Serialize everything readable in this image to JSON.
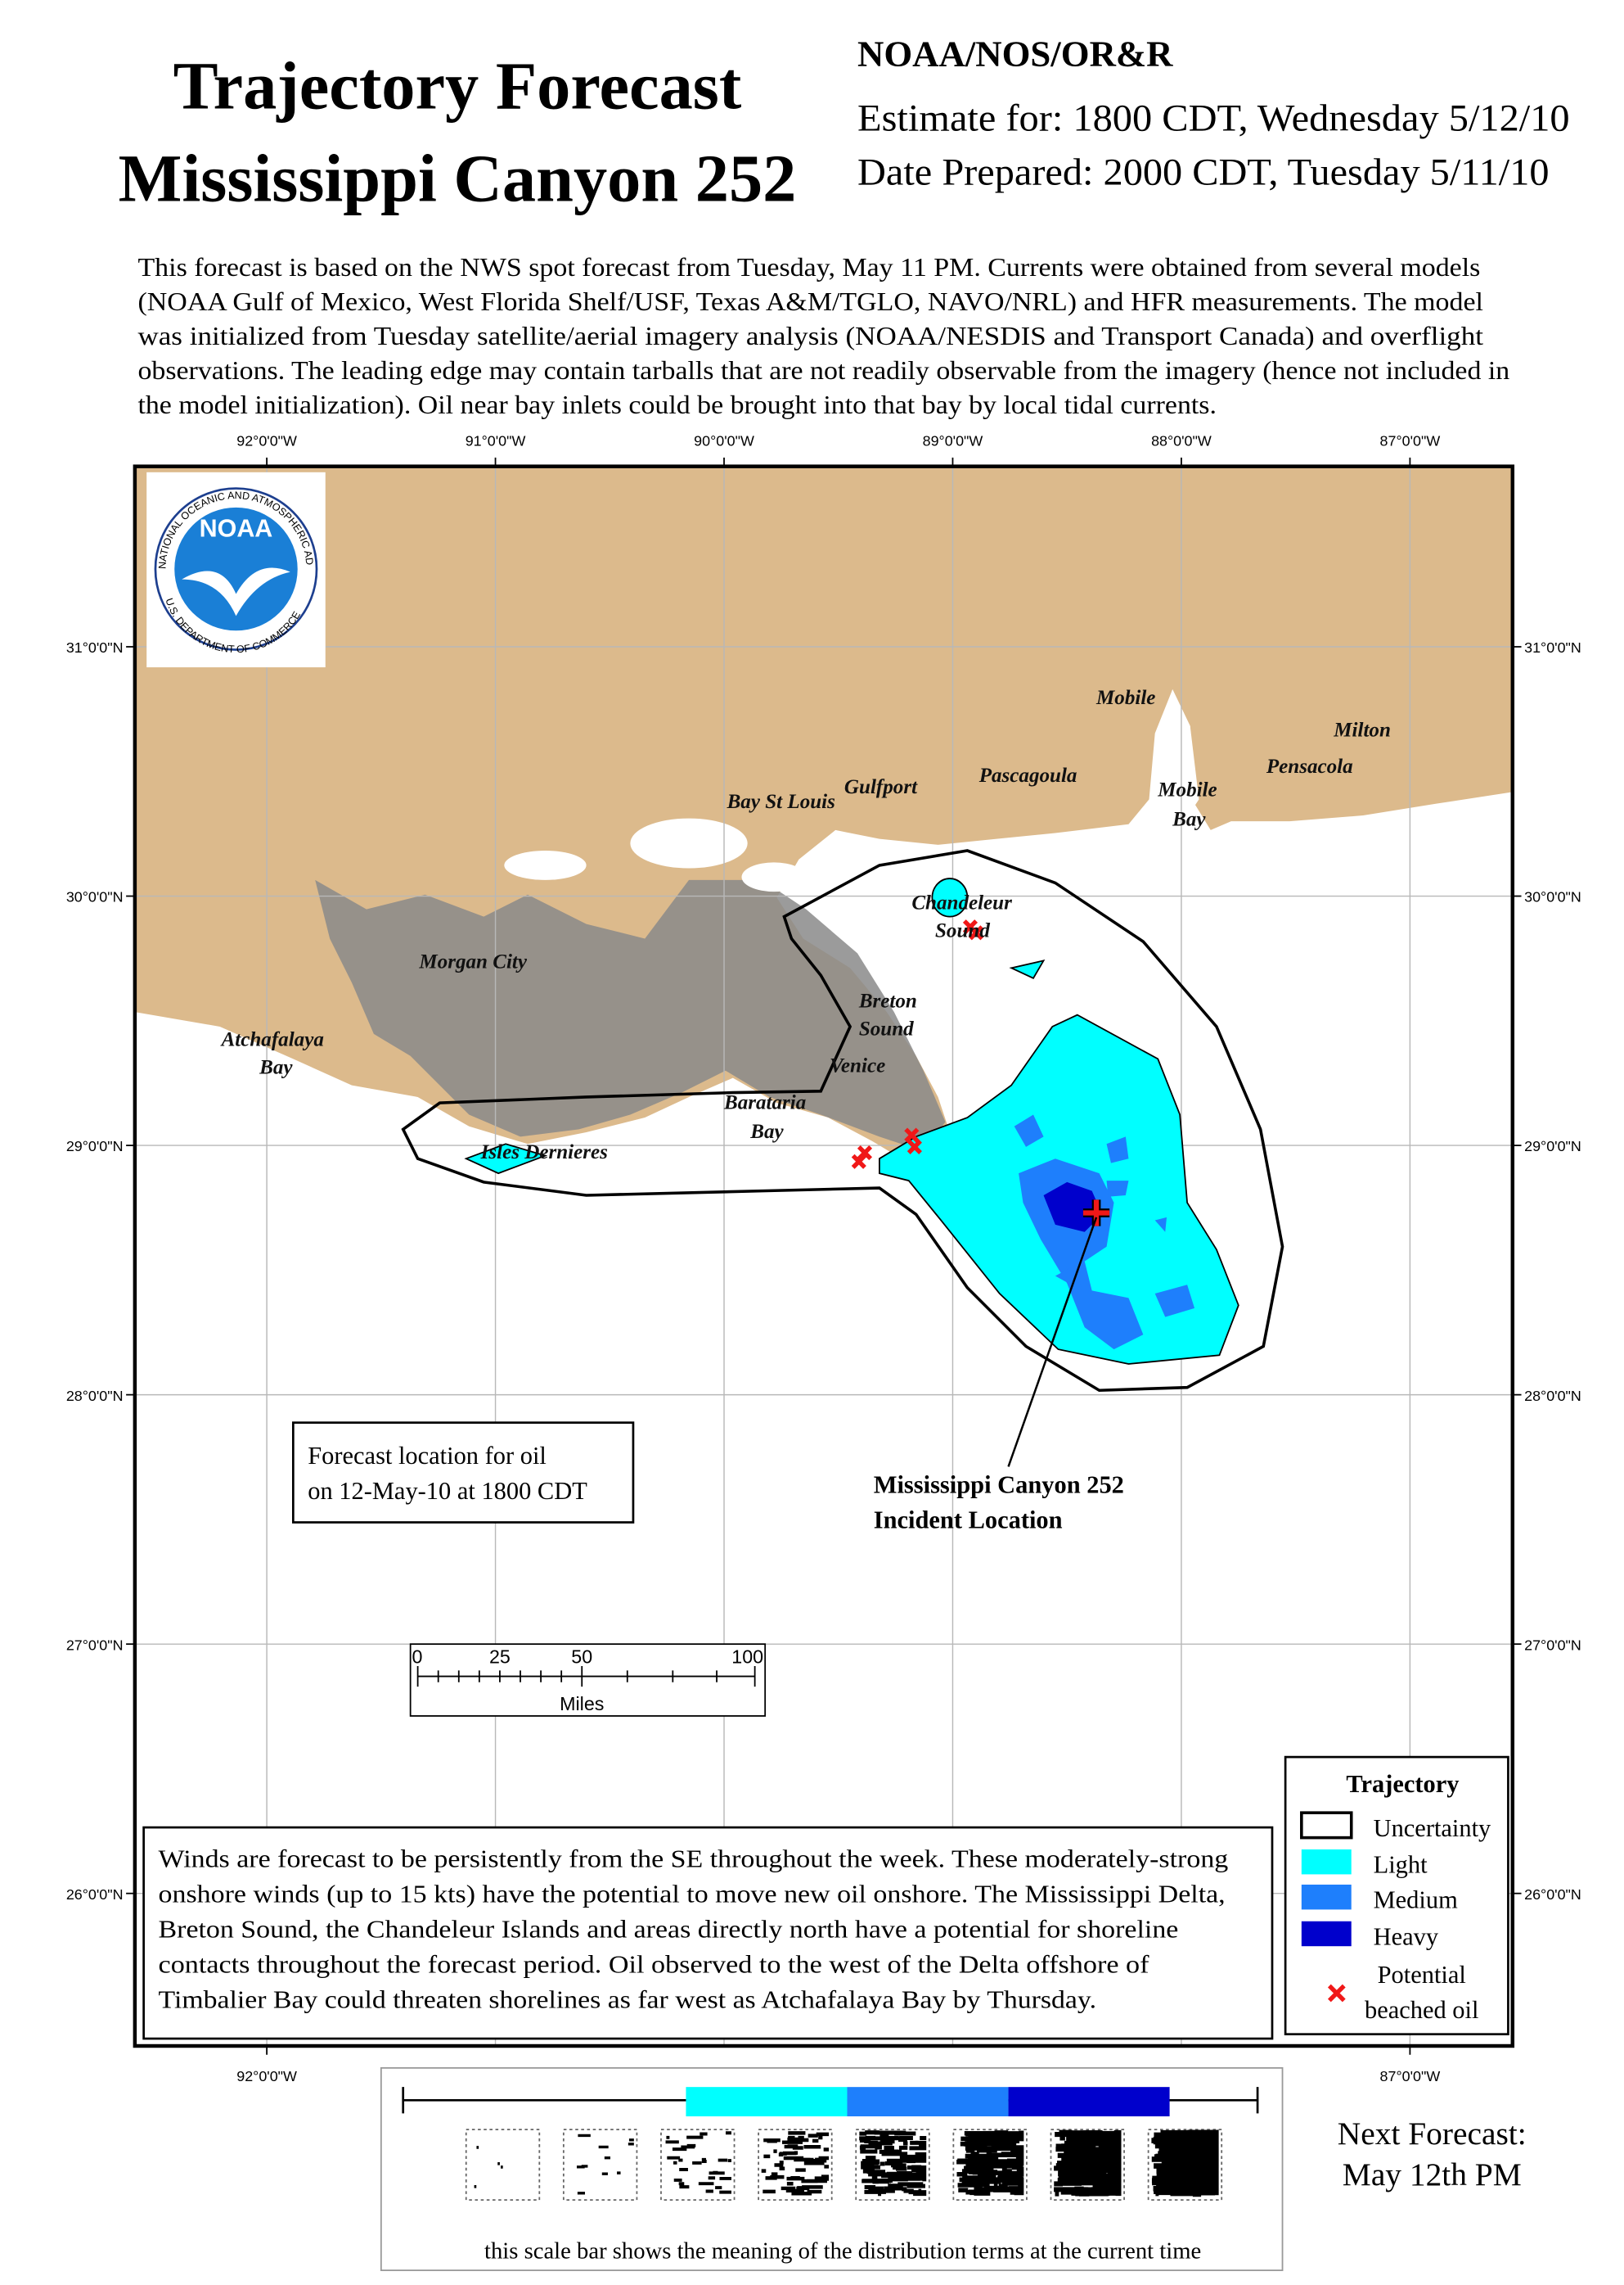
{
  "header": {
    "title": [
      "Trajectory Forecast",
      "Mississippi Canyon 252"
    ],
    "agency": "NOAA/NOS/OR&R",
    "estimate": "Estimate for: 1800 CDT, Wednesday 5/12/10",
    "prepared": "Date Prepared: 2000 CDT, Tuesday 5/11/10"
  },
  "description": [
    "This forecast is based on the NWS spot forecast from Tuesday, May 11 PM. Currents were obtained from several models",
    "(NOAA Gulf of Mexico, West Florida Shelf/USF, Texas A&M/TGLO, NAVO/NRL) and HFR measurements. The model",
    "was initialized from Tuesday satellite/aerial imagery analysis (NOAA/NESDIS and Transport Canada) and overflight",
    "observations. The leading edge may contain tarballs that are not readily observable from the imagery (hence not included in",
    "the model initialization). Oil near bay inlets could be brought into that bay by local tidal currents."
  ],
  "map": {
    "longitudes": [
      "92°0'0\"W",
      "91°0'0\"W",
      "90°0'0\"W",
      "89°0'0\"W",
      "88°0'0\"W",
      "87°0'0\"W"
    ],
    "latitudes": [
      "31°0'0\"N",
      "30°0'0\"N",
      "29°0'0\"N",
      "28°0'0\"N",
      "27°0'0\"N",
      "26°0'0\"N"
    ],
    "logo": {
      "name": "NOAA",
      "ring": "NATIONAL OCEANIC AND ATMOSPHERIC ADMINISTRATION",
      "dept": "U.S. DEPARTMENT OF COMMERCE"
    },
    "places": [
      "Mobile",
      "Milton",
      "Pensacola",
      "Mobile",
      "Bay",
      "Pascagoula",
      "Gulfport",
      "Bay St Louis",
      "Chandeleur",
      "Sound",
      "Morgan City",
      "Breton",
      "Sound",
      "Venice",
      "Atchafalaya",
      "Bay",
      "Barataria",
      "Bay",
      "Isles Dernieres"
    ],
    "forecast_box": [
      "Forecast location for oil",
      "on 12-May-10 at 1800 CDT"
    ],
    "incident": [
      "Mississippi Canyon 252",
      "Incident Location"
    ],
    "scale": {
      "ticks": [
        "0",
        "25",
        "50",
        "100"
      ],
      "unit": "Miles"
    }
  },
  "winds": [
    "Winds are forecast to be persistently from the SE throughout the week. These moderately-strong",
    "onshore winds (up to 15 kts) have the potential to move new oil onshore. The Mississippi Delta,",
    "Breton Sound, the Chandeleur Islands and areas directly north have a potential for shoreline",
    "contacts throughout the forecast period.  Oil observed to the west of the Delta offshore of",
    "Timbalier Bay could threaten shorelines as far west as Atchafalaya Bay by Thursday."
  ],
  "legend": {
    "title": "Trajectory",
    "items": [
      "Uncertainty",
      "Light",
      "Medium",
      "Heavy"
    ],
    "beached": [
      "Potential",
      "beached oil"
    ]
  },
  "next_forecast": [
    "Next Forecast:",
    "May 12th PM"
  ],
  "scale_caption": "this scale bar shows the meaning of the distribution terms at the current time"
}
